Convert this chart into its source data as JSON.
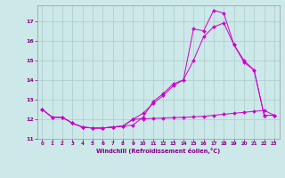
{
  "background_color": "#cce8e8",
  "grid_color": "#aacccc",
  "line_color": "#cc00cc",
  "marker_color": "#cc00cc",
  "xlabel": "Windchill (Refroidissement éolien,°C)",
  "xlabel_color": "#880088",
  "tick_color": "#880088",
  "xlim": [
    -0.5,
    23.5
  ],
  "ylim": [
    11.0,
    17.8
  ],
  "yticks": [
    11,
    12,
    13,
    14,
    15,
    16,
    17
  ],
  "xticks": [
    0,
    1,
    2,
    3,
    4,
    5,
    6,
    7,
    8,
    9,
    10,
    11,
    12,
    13,
    14,
    15,
    16,
    17,
    18,
    19,
    20,
    21,
    22,
    23
  ],
  "line1_x": [
    0,
    1,
    2,
    3,
    4,
    5,
    6,
    7,
    8,
    9,
    10,
    11,
    12,
    13,
    14,
    15,
    16,
    17,
    18,
    19,
    20,
    21,
    22,
    23
  ],
  "line1_y": [
    12.5,
    12.1,
    12.1,
    11.8,
    11.6,
    11.55,
    11.55,
    11.6,
    11.65,
    11.7,
    12.1,
    12.9,
    13.3,
    13.8,
    14.0,
    16.6,
    16.5,
    17.55,
    17.4,
    15.8,
    15.0,
    14.5,
    12.2,
    12.2
  ],
  "line2_x": [
    0,
    1,
    2,
    3,
    4,
    5,
    6,
    7,
    8,
    9,
    10,
    11,
    12,
    13,
    14,
    15,
    16,
    17,
    18,
    19,
    20,
    21,
    22,
    23
  ],
  "line2_y": [
    12.5,
    12.1,
    12.1,
    11.8,
    11.6,
    11.55,
    11.55,
    11.6,
    11.65,
    12.0,
    12.02,
    12.04,
    12.06,
    12.08,
    12.1,
    12.12,
    12.15,
    12.2,
    12.25,
    12.3,
    12.35,
    12.4,
    12.45,
    12.2
  ],
  "line3_x": [
    0,
    1,
    2,
    3,
    4,
    5,
    6,
    7,
    8,
    9,
    10,
    11,
    12,
    13,
    14,
    15,
    16,
    17,
    18,
    19,
    20,
    21,
    22,
    23
  ],
  "line3_y": [
    12.5,
    12.1,
    12.1,
    11.8,
    11.6,
    11.55,
    11.55,
    11.6,
    11.65,
    12.0,
    12.3,
    12.8,
    13.2,
    13.7,
    14.0,
    15.0,
    16.2,
    16.7,
    16.9,
    15.8,
    14.9,
    14.5,
    12.2,
    12.2
  ]
}
